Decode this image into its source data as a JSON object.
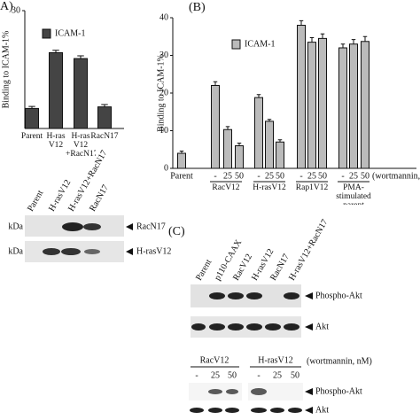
{
  "chart_data": [
    {
      "type": "bar",
      "panel_label": "A)",
      "y_label": "Binding to ICAM-1%",
      "ylim": [
        0,
        30
      ],
      "yticks": [
        30
      ],
      "categories": [
        "Parent",
        "H-ras V12",
        "H-ras V12 +RacN17",
        "RacN17"
      ],
      "series": [
        {
          "name": "ICAM-1",
          "color": "#444444",
          "values": [
            5.1,
            19.3,
            17.8,
            5.5
          ],
          "errors": [
            0.5,
            0.6,
            0.7,
            0.6
          ]
        }
      ]
    },
    {
      "type": "bar",
      "panel_label": "(B)",
      "y_label": "Binding to ICAM-1%",
      "ylim": [
        0,
        40
      ],
      "yticks": [
        0,
        10,
        20,
        30,
        40
      ],
      "categories": [
        "Parent",
        "-",
        "25",
        "50",
        "-",
        "25",
        "50",
        "-",
        "25",
        "50",
        "-",
        "25",
        "50"
      ],
      "groups": [
        "RacV12",
        "H-rasV12",
        "Rap1V12",
        "PMA-stimulated parent"
      ],
      "x_note": "(wortmannin,",
      "series": [
        {
          "name": "ICAM-1",
          "color": "#bbbbbb",
          "values": [
            4,
            22,
            10.3,
            6,
            18.8,
            12.5,
            7,
            38,
            33.5,
            34.5,
            32,
            33,
            33.7
          ],
          "errors": [
            0.6,
            1,
            0.8,
            0.7,
            0.8,
            0.5,
            0.6,
            1.2,
            1.2,
            1.2,
            1,
            1.2,
            1.3
          ]
        }
      ]
    }
  ],
  "blot_a": {
    "lanes": [
      "Parent",
      "H-rasV12",
      "H-rasV12+RacN17",
      "RacN17"
    ],
    "marker": [
      "kDa",
      "kDa"
    ],
    "bands": [
      "RacN17",
      "H-rasV12"
    ]
  },
  "blot_c": {
    "panel_label": "(C)",
    "lanes": [
      "Parent",
      "p110-CAAX",
      "RacV12",
      "H-rasV12",
      "RacN17",
      "H-rasV12+RacN17"
    ],
    "bands": [
      "Phospho-Akt",
      "Akt"
    ],
    "groups": [
      "RacV12",
      "H-rasV12"
    ],
    "note": "(wortmannin, nM)",
    "doses": [
      "-",
      "25",
      "50",
      "-",
      "25",
      "50"
    ],
    "bands2": [
      "Phospho-Akt",
      "Akt"
    ]
  }
}
